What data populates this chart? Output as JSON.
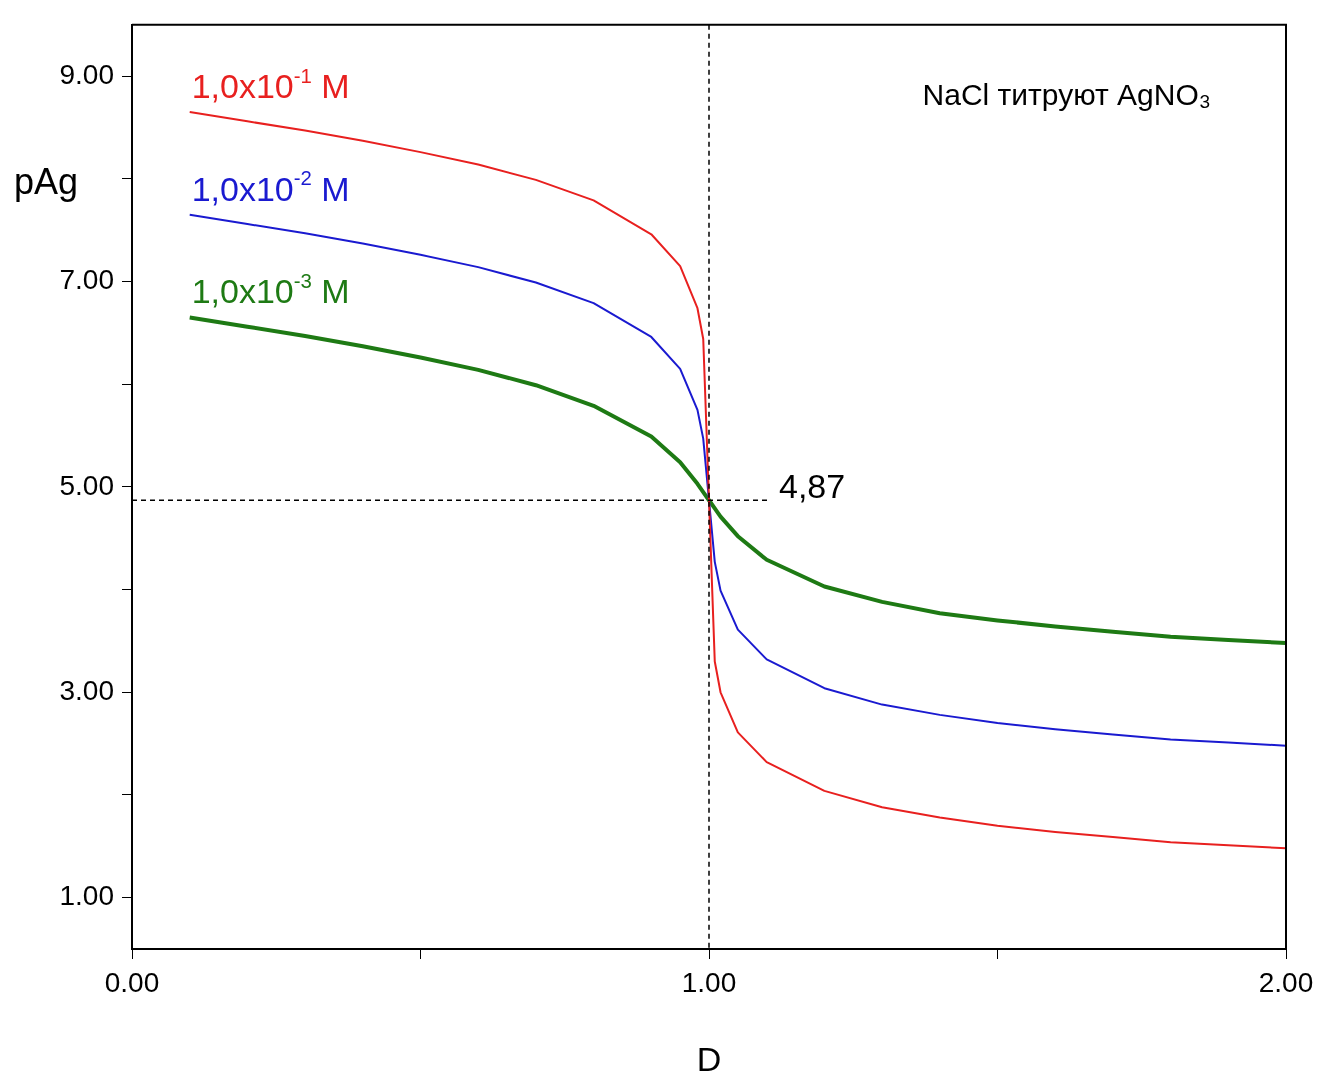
{
  "chart_data": {
    "type": "line",
    "xlabel": "D",
    "ylabel": "pAg",
    "x": [
      0.1,
      0.2,
      0.3,
      0.4,
      0.5,
      0.6,
      0.7,
      0.8,
      0.9,
      0.95,
      0.98,
      0.99,
      1.0,
      1.01,
      1.02,
      1.05,
      1.1,
      1.2,
      1.3,
      1.4,
      1.5,
      1.6,
      1.7,
      1.8,
      1.9,
      2.0
    ],
    "series": [
      {
        "name": "1,0x10$^{-1}$ M",
        "color": "#e8201f",
        "values": [
          8.65,
          8.56,
          8.47,
          8.37,
          8.26,
          8.14,
          7.99,
          7.79,
          7.46,
          7.15,
          6.74,
          6.44,
          4.87,
          3.3,
          3.0,
          2.61,
          2.32,
          2.04,
          1.88,
          1.78,
          1.7,
          1.64,
          1.59,
          1.54,
          1.51,
          1.48
        ]
      },
      {
        "name": "1,0x10$^{-2}$ M",
        "color": "#1a1ad0",
        "values": [
          7.65,
          7.56,
          7.47,
          7.37,
          7.26,
          7.14,
          6.99,
          6.79,
          6.46,
          6.15,
          5.75,
          5.47,
          4.87,
          4.27,
          3.99,
          3.61,
          3.32,
          3.04,
          2.88,
          2.78,
          2.7,
          2.64,
          2.59,
          2.54,
          2.51,
          2.48
        ]
      },
      {
        "name": "1,0x10$^{-3}$ M",
        "color": "#1e7a14",
        "values": [
          6.65,
          6.56,
          6.47,
          6.37,
          6.26,
          6.14,
          5.99,
          5.79,
          5.49,
          5.24,
          5.03,
          4.95,
          4.87,
          4.79,
          4.71,
          4.52,
          4.29,
          4.03,
          3.88,
          3.77,
          3.7,
          3.64,
          3.59,
          3.54,
          3.51,
          3.48
        ]
      }
    ],
    "xlim": [
      0,
      2
    ],
    "xticks": [
      {
        "value": 0,
        "label": "0.00"
      },
      {
        "value": 0.5,
        "label": null
      },
      {
        "value": 1,
        "label": "1.00"
      },
      {
        "value": 1.5,
        "label": null
      },
      {
        "value": 2,
        "label": "2.00"
      }
    ],
    "ylim": [
      0.5,
      9.5
    ],
    "yticks": [
      {
        "value": 1,
        "label": "1.00"
      },
      {
        "value": 2,
        "label": null
      },
      {
        "value": 3,
        "label": "3.00"
      },
      {
        "value": 4,
        "label": null
      },
      {
        "value": 5,
        "label": "5.00"
      },
      {
        "value": 6,
        "label": null
      },
      {
        "value": 7,
        "label": "7.00"
      },
      {
        "value": 8,
        "label": null
      },
      {
        "value": 9,
        "label": "9.00"
      }
    ],
    "ref_lines": [
      {
        "axis": "x",
        "value": 1,
        "line_style": "dashed",
        "color": "#000000"
      },
      {
        "axis": "y",
        "value": 4.87,
        "label": "4,87",
        "line_style": "dashed",
        "color": "#000000"
      }
    ],
    "annotations": [
      "NaCl титруют AgNO₃"
    ],
    "grid": false,
    "legend": false,
    "marker": "none",
    "line_style": "solid"
  }
}
